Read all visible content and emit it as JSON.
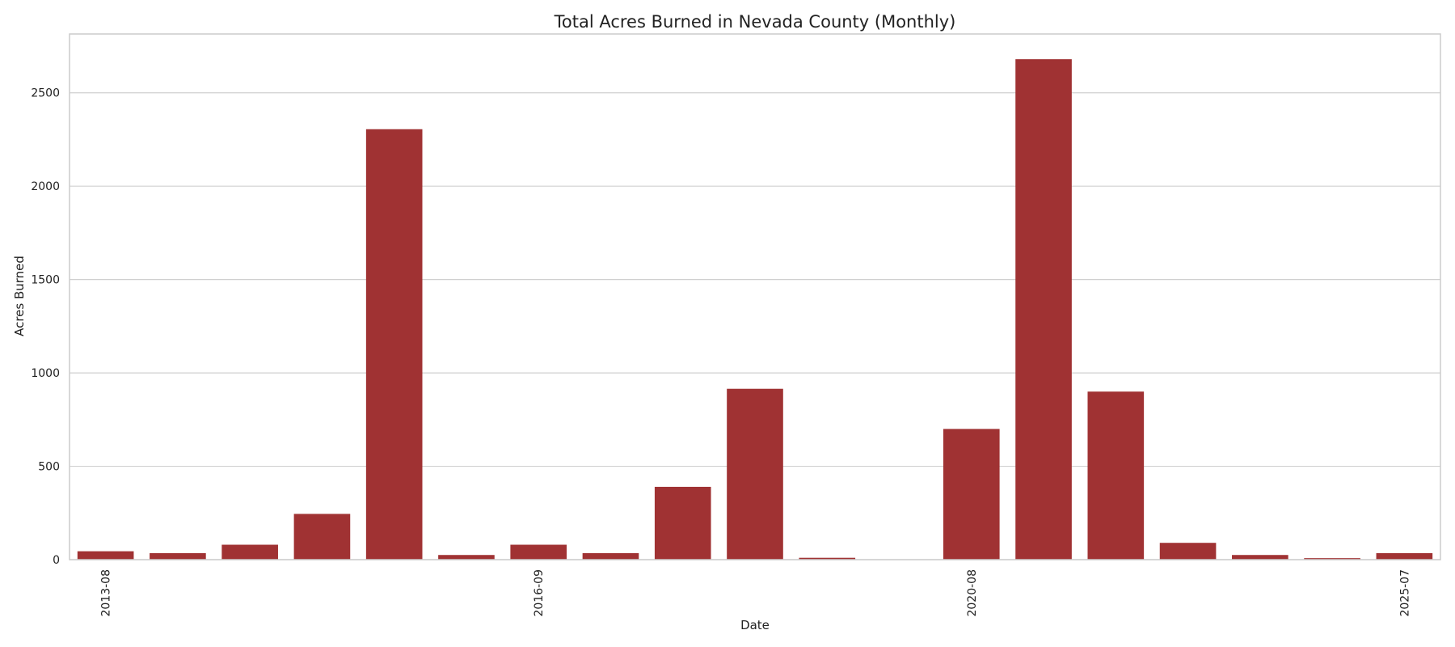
{
  "chart_data": {
    "type": "bar",
    "title": "Total Acres Burned in Nevada County (Monthly)",
    "xlabel": "Date",
    "ylabel": "Acres Burned",
    "categories": [
      "2013-08",
      "",
      "",
      "",
      "",
      "",
      "2016-09",
      "",
      "",
      "",
      "",
      "",
      "2020-08",
      "",
      "",
      "",
      "",
      "",
      "2025-07"
    ],
    "values": [
      45,
      35,
      80,
      245,
      2305,
      25,
      80,
      35,
      390,
      915,
      10,
      2,
      700,
      2680,
      900,
      90,
      25,
      8,
      35
    ],
    "visible_tick_labels": [
      "2013-08",
      "2016-09",
      "2020-08",
      "2025-07"
    ],
    "yticks": [
      0,
      500,
      1000,
      1500,
      2000,
      2500
    ],
    "ylim": [
      0,
      2815
    ],
    "grid": "horizontal",
    "bar_color": "#a03233",
    "legend": "none"
  }
}
